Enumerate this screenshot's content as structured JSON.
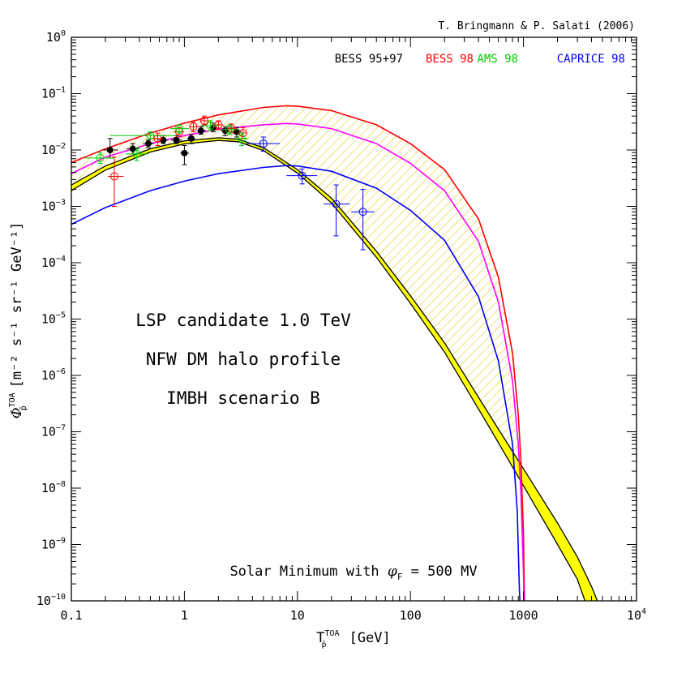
{
  "chart_data": {
    "type": "line",
    "credit": "T. Bringmann & P. Salati (2006)",
    "x_axis": {
      "scale": "log",
      "range": [
        0.1,
        10000
      ],
      "label_main": "T",
      "label_sup": "TOA",
      "label_sub": "p̄",
      "label_unit": "[GeV]",
      "ticks": [
        {
          "v": 0.1,
          "label": "0.1"
        },
        {
          "v": 1,
          "label": "1"
        },
        {
          "v": 10,
          "label": "10"
        },
        {
          "v": 100,
          "label": "100"
        },
        {
          "v": 1000,
          "label": "1000"
        },
        {
          "v": 10000,
          "label": "10",
          "exp": "4"
        }
      ]
    },
    "y_axis": {
      "scale": "log",
      "range": [
        1e-10,
        1
      ],
      "label_main": "Φ",
      "label_sup": "TOA",
      "label_sub": "p̄",
      "label_unit": "[m⁻² s⁻¹ sr⁻¹ GeV⁻¹]",
      "ticks": [
        {
          "v": 1,
          "base": "10",
          "exp": "0"
        },
        {
          "v": 0.1,
          "base": "10",
          "exp": "−1"
        },
        {
          "v": 0.01,
          "base": "10",
          "exp": "−2"
        },
        {
          "v": 0.001,
          "base": "10",
          "exp": "−3"
        },
        {
          "v": 0.0001,
          "base": "10",
          "exp": "−4"
        },
        {
          "v": 1e-05,
          "base": "10",
          "exp": "−5"
        },
        {
          "v": 1e-06,
          "base": "10",
          "exp": "−6"
        },
        {
          "v": 1e-07,
          "base": "10",
          "exp": "−7"
        },
        {
          "v": 1e-08,
          "base": "10",
          "exp": "−8"
        },
        {
          "v": 1e-09,
          "base": "10",
          "exp": "−9"
        },
        {
          "v": 1e-10,
          "base": "10",
          "exp": "−10"
        }
      ]
    },
    "legend": [
      {
        "label": "BESS 95+97",
        "color": "#000000"
      },
      {
        "label": "BESS 98",
        "color": "#ff0000"
      },
      {
        "label": "AMS 98",
        "color": "#00cc00"
      },
      {
        "label": "CAPRICE 98",
        "color": "#0000ff"
      }
    ],
    "annotations": [
      "LSP candidate 1.0 TeV",
      "NFW DM halo profile",
      "IMBH scenario B"
    ],
    "solar_note": {
      "text": "Solar Minimum with ",
      "phi": "φ",
      "sub": "F",
      "rest": " = 500 MV"
    },
    "band": {
      "fill": "#ffff00",
      "upper": [
        [
          0.1,
          0.0024
        ],
        [
          0.2,
          0.0052
        ],
        [
          0.5,
          0.0105
        ],
        [
          1,
          0.0145
        ],
        [
          2,
          0.0165
        ],
        [
          3,
          0.0155
        ],
        [
          5,
          0.011
        ],
        [
          10,
          0.0045
        ],
        [
          20,
          0.0014
        ],
        [
          50,
          0.00016
        ],
        [
          100,
          2.6e-05
        ],
        [
          200,
          3.8e-06
        ],
        [
          500,
          2e-07
        ],
        [
          1000,
          2.2e-08
        ],
        [
          2000,
          2.4e-09
        ],
        [
          3000,
          6e-10
        ],
        [
          4000,
          1.8e-10
        ],
        [
          4500,
          1e-10
        ]
      ],
      "lower": [
        [
          0.1,
          0.0019
        ],
        [
          0.2,
          0.0044
        ],
        [
          0.5,
          0.0092
        ],
        [
          1,
          0.0128
        ],
        [
          2,
          0.0148
        ],
        [
          3,
          0.014
        ],
        [
          5,
          0.0098
        ],
        [
          10,
          0.0039
        ],
        [
          20,
          0.00115
        ],
        [
          50,
          0.000125
        ],
        [
          100,
          1.9e-05
        ],
        [
          200,
          2.6e-06
        ],
        [
          500,
          1.2e-07
        ],
        [
          1000,
          1.1e-08
        ],
        [
          2000,
          1e-09
        ],
        [
          3000,
          2.4e-10
        ],
        [
          3500,
          1e-10
        ]
      ]
    },
    "hatch": {
      "color": "#e8c800",
      "upper": [
        [
          0.1,
          0.006
        ],
        [
          0.2,
          0.0105
        ],
        [
          0.5,
          0.02
        ],
        [
          1,
          0.03
        ],
        [
          2,
          0.042
        ],
        [
          5,
          0.057
        ],
        [
          8,
          0.061
        ],
        [
          10,
          0.06
        ],
        [
          20,
          0.05
        ],
        [
          50,
          0.028
        ],
        [
          100,
          0.013
        ],
        [
          200,
          0.0045
        ],
        [
          400,
          0.0006
        ],
        [
          600,
          5.5e-05
        ],
        [
          800,
          2.5e-06
        ],
        [
          900,
          2e-07
        ],
        [
          950,
          3e-08
        ],
        [
          1000,
          1.5e-09
        ],
        [
          1020,
          1e-10
        ]
      ],
      "lower": [
        [
          0.1,
          0.0024
        ],
        [
          0.2,
          0.0052
        ],
        [
          0.5,
          0.0105
        ],
        [
          1,
          0.0145
        ],
        [
          2,
          0.0165
        ],
        [
          3,
          0.0155
        ],
        [
          5,
          0.011
        ],
        [
          10,
          0.0045
        ],
        [
          20,
          0.0014
        ],
        [
          50,
          0.00016
        ],
        [
          100,
          2.6e-05
        ],
        [
          200,
          3.8e-06
        ],
        [
          500,
          2e-07
        ],
        [
          800,
          4.5e-08
        ],
        [
          1000,
          2.2e-08
        ],
        [
          1020,
          2e-08
        ]
      ]
    },
    "series": [
      {
        "color": "#ff0000",
        "points": [
          [
            0.1,
            0.006
          ],
          [
            0.2,
            0.0105
          ],
          [
            0.5,
            0.02
          ],
          [
            1,
            0.03
          ],
          [
            2,
            0.042
          ],
          [
            5,
            0.057
          ],
          [
            8,
            0.061
          ],
          [
            10,
            0.06
          ],
          [
            20,
            0.05
          ],
          [
            50,
            0.028
          ],
          [
            100,
            0.013
          ],
          [
            200,
            0.0045
          ],
          [
            400,
            0.0006
          ],
          [
            600,
            5.5e-05
          ],
          [
            800,
            2.5e-06
          ],
          [
            900,
            2e-07
          ],
          [
            950,
            3e-08
          ],
          [
            1000,
            1.5e-09
          ],
          [
            1020,
            1e-10
          ]
        ]
      },
      {
        "color": "#ff00ff",
        "points": [
          [
            0.1,
            0.0038
          ],
          [
            0.2,
            0.0075
          ],
          [
            0.5,
            0.013
          ],
          [
            1,
            0.018
          ],
          [
            2,
            0.0235
          ],
          [
            5,
            0.028
          ],
          [
            8,
            0.0295
          ],
          [
            10,
            0.029
          ],
          [
            20,
            0.024
          ],
          [
            50,
            0.013
          ],
          [
            100,
            0.0058
          ],
          [
            200,
            0.0019
          ],
          [
            400,
            0.00024
          ],
          [
            600,
            2e-05
          ],
          [
            800,
            8e-07
          ],
          [
            900,
            6e-08
          ],
          [
            950,
            8e-09
          ],
          [
            1000,
            3e-10
          ],
          [
            1010,
            1e-10
          ]
        ]
      },
      {
        "color": "#0000ff",
        "points": [
          [
            0.1,
            0.00048
          ],
          [
            0.2,
            0.00095
          ],
          [
            0.5,
            0.0019
          ],
          [
            1,
            0.0028
          ],
          [
            2,
            0.0038
          ],
          [
            5,
            0.0049
          ],
          [
            8,
            0.0053
          ],
          [
            10,
            0.0052
          ],
          [
            20,
            0.0042
          ],
          [
            50,
            0.0021
          ],
          [
            100,
            0.00085
          ],
          [
            200,
            0.00025
          ],
          [
            400,
            2.5e-05
          ],
          [
            600,
            1.8e-06
          ],
          [
            800,
            6e-08
          ],
          [
            880,
            4e-09
          ],
          [
            920,
            1.5e-10
          ],
          [
            930,
            1e-10
          ]
        ]
      }
    ],
    "data_points": [
      {
        "x": 0.22,
        "y": 0.01,
        "xl": 0.19,
        "xh": 0.26,
        "yl": 0.0072,
        "yh": 0.016,
        "color": "#000000",
        "marker": "filled-circle"
      },
      {
        "x": 0.35,
        "y": 0.0105,
        "xl": 0.31,
        "xh": 0.4,
        "yl": 0.0085,
        "yh": 0.013,
        "color": "#000000",
        "marker": "filled-circle"
      },
      {
        "x": 0.48,
        "y": 0.013,
        "xl": 0.43,
        "xh": 0.54,
        "yl": 0.011,
        "yh": 0.015,
        "color": "#000000",
        "marker": "filled-circle"
      },
      {
        "x": 0.65,
        "y": 0.015,
        "xl": 0.58,
        "xh": 0.72,
        "yl": 0.013,
        "yh": 0.018,
        "color": "#000000",
        "marker": "filled-circle"
      },
      {
        "x": 0.85,
        "y": 0.015,
        "xl": 0.76,
        "xh": 0.95,
        "yl": 0.013,
        "yh": 0.018,
        "color": "#000000",
        "marker": "filled-circle"
      },
      {
        "x": 1.0,
        "y": 0.0088,
        "xl": 0.92,
        "xh": 1.1,
        "yl": 0.0055,
        "yh": 0.012,
        "color": "#000000",
        "marker": "filled-circle"
      },
      {
        "x": 1.15,
        "y": 0.016,
        "xl": 1.05,
        "xh": 1.25,
        "yl": 0.013,
        "yh": 0.019,
        "color": "#000000",
        "marker": "filled-circle"
      },
      {
        "x": 1.4,
        "y": 0.022,
        "xl": 1.28,
        "xh": 1.55,
        "yl": 0.019,
        "yh": 0.026,
        "color": "#000000",
        "marker": "filled-circle"
      },
      {
        "x": 1.8,
        "y": 0.025,
        "xl": 1.65,
        "xh": 1.95,
        "yl": 0.021,
        "yh": 0.03,
        "color": "#000000",
        "marker": "filled-circle"
      },
      {
        "x": 2.3,
        "y": 0.022,
        "xl": 2.1,
        "xh": 2.5,
        "yl": 0.018,
        "yh": 0.026,
        "color": "#000000",
        "marker": "filled-circle"
      },
      {
        "x": 2.9,
        "y": 0.021,
        "xl": 2.6,
        "xh": 3.2,
        "yl": 0.017,
        "yh": 0.025,
        "color": "#000000",
        "marker": "filled-circle"
      },
      {
        "x": 0.24,
        "y": 0.0034,
        "xl": 0.21,
        "xh": 0.29,
        "yl": 0.001,
        "yh": 0.0075,
        "color": "#ff0000",
        "marker": "open-circle"
      },
      {
        "x": 0.58,
        "y": 0.016,
        "xl": 0.52,
        "xh": 0.65,
        "yl": 0.012,
        "yh": 0.02,
        "color": "#ff0000",
        "marker": "open-circle"
      },
      {
        "x": 0.9,
        "y": 0.021,
        "xl": 0.8,
        "xh": 1.0,
        "yl": 0.017,
        "yh": 0.025,
        "color": "#ff0000",
        "marker": "open-circle"
      },
      {
        "x": 1.2,
        "y": 0.026,
        "xl": 1.1,
        "xh": 1.35,
        "yl": 0.021,
        "yh": 0.031,
        "color": "#ff0000",
        "marker": "open-circle"
      },
      {
        "x": 1.5,
        "y": 0.033,
        "xl": 1.38,
        "xh": 1.65,
        "yl": 0.028,
        "yh": 0.04,
        "color": "#ff0000",
        "marker": "open-circle"
      },
      {
        "x": 2.0,
        "y": 0.028,
        "xl": 1.85,
        "xh": 2.2,
        "yl": 0.023,
        "yh": 0.033,
        "color": "#ff0000",
        "marker": "open-circle"
      },
      {
        "x": 2.6,
        "y": 0.024,
        "xl": 2.4,
        "xh": 2.85,
        "yl": 0.02,
        "yh": 0.029,
        "color": "#ff0000",
        "marker": "open-circle"
      },
      {
        "x": 3.3,
        "y": 0.02,
        "xl": 3.0,
        "xh": 3.6,
        "yl": 0.016,
        "yh": 0.025,
        "color": "#ff0000",
        "marker": "open-circle"
      },
      {
        "x": 0.18,
        "y": 0.0072,
        "xl": 0.13,
        "xh": 0.24,
        "yl": 0.0058,
        "yh": 0.009,
        "color": "#00cc00",
        "marker": "open-circle"
      },
      {
        "x": 0.38,
        "y": 0.0085,
        "xl": 0.3,
        "xh": 0.48,
        "yl": 0.0065,
        "yh": 0.011,
        "color": "#00cc00",
        "marker": "open-circle"
      },
      {
        "x": 0.5,
        "y": 0.018,
        "xl": 0.22,
        "xh": 0.85,
        "yl": 0.016,
        "yh": 0.021,
        "color": "#00cc00",
        "marker": "open-circle"
      },
      {
        "x": 0.9,
        "y": 0.024,
        "xl": 0.75,
        "xh": 1.1,
        "yl": 0.02,
        "yh": 0.028,
        "color": "#00cc00",
        "marker": "open-circle"
      },
      {
        "x": 1.7,
        "y": 0.027,
        "xl": 1.4,
        "xh": 2.05,
        "yl": 0.022,
        "yh": 0.033,
        "color": "#00cc00",
        "marker": "open-circle"
      },
      {
        "x": 2.5,
        "y": 0.023,
        "xl": 2.1,
        "xh": 3.0,
        "yl": 0.019,
        "yh": 0.028,
        "color": "#00cc00",
        "marker": "open-circle"
      },
      {
        "x": 3.2,
        "y": 0.016,
        "xl": 2.8,
        "xh": 3.7,
        "yl": 0.012,
        "yh": 0.02,
        "color": "#00cc00",
        "marker": "open-circle"
      },
      {
        "x": 5.0,
        "y": 0.013,
        "xl": 3.5,
        "xh": 7.0,
        "yl": 0.0095,
        "yh": 0.017,
        "color": "#0000ff",
        "marker": "open-circle"
      },
      {
        "x": 11.0,
        "y": 0.0035,
        "xl": 8.0,
        "xh": 15.0,
        "yl": 0.0025,
        "yh": 0.0046,
        "color": "#0000ff",
        "marker": "open-circle"
      },
      {
        "x": 22.0,
        "y": 0.0011,
        "xl": 17.0,
        "xh": 29.0,
        "yl": 0.0003,
        "yh": 0.0024,
        "color": "#0000ff",
        "marker": "open-circle"
      },
      {
        "x": 38.0,
        "y": 0.0008,
        "xl": 30.0,
        "xh": 48.0,
        "yl": 0.00017,
        "yh": 0.002,
        "color": "#0000ff",
        "marker": "open-circle"
      }
    ]
  }
}
